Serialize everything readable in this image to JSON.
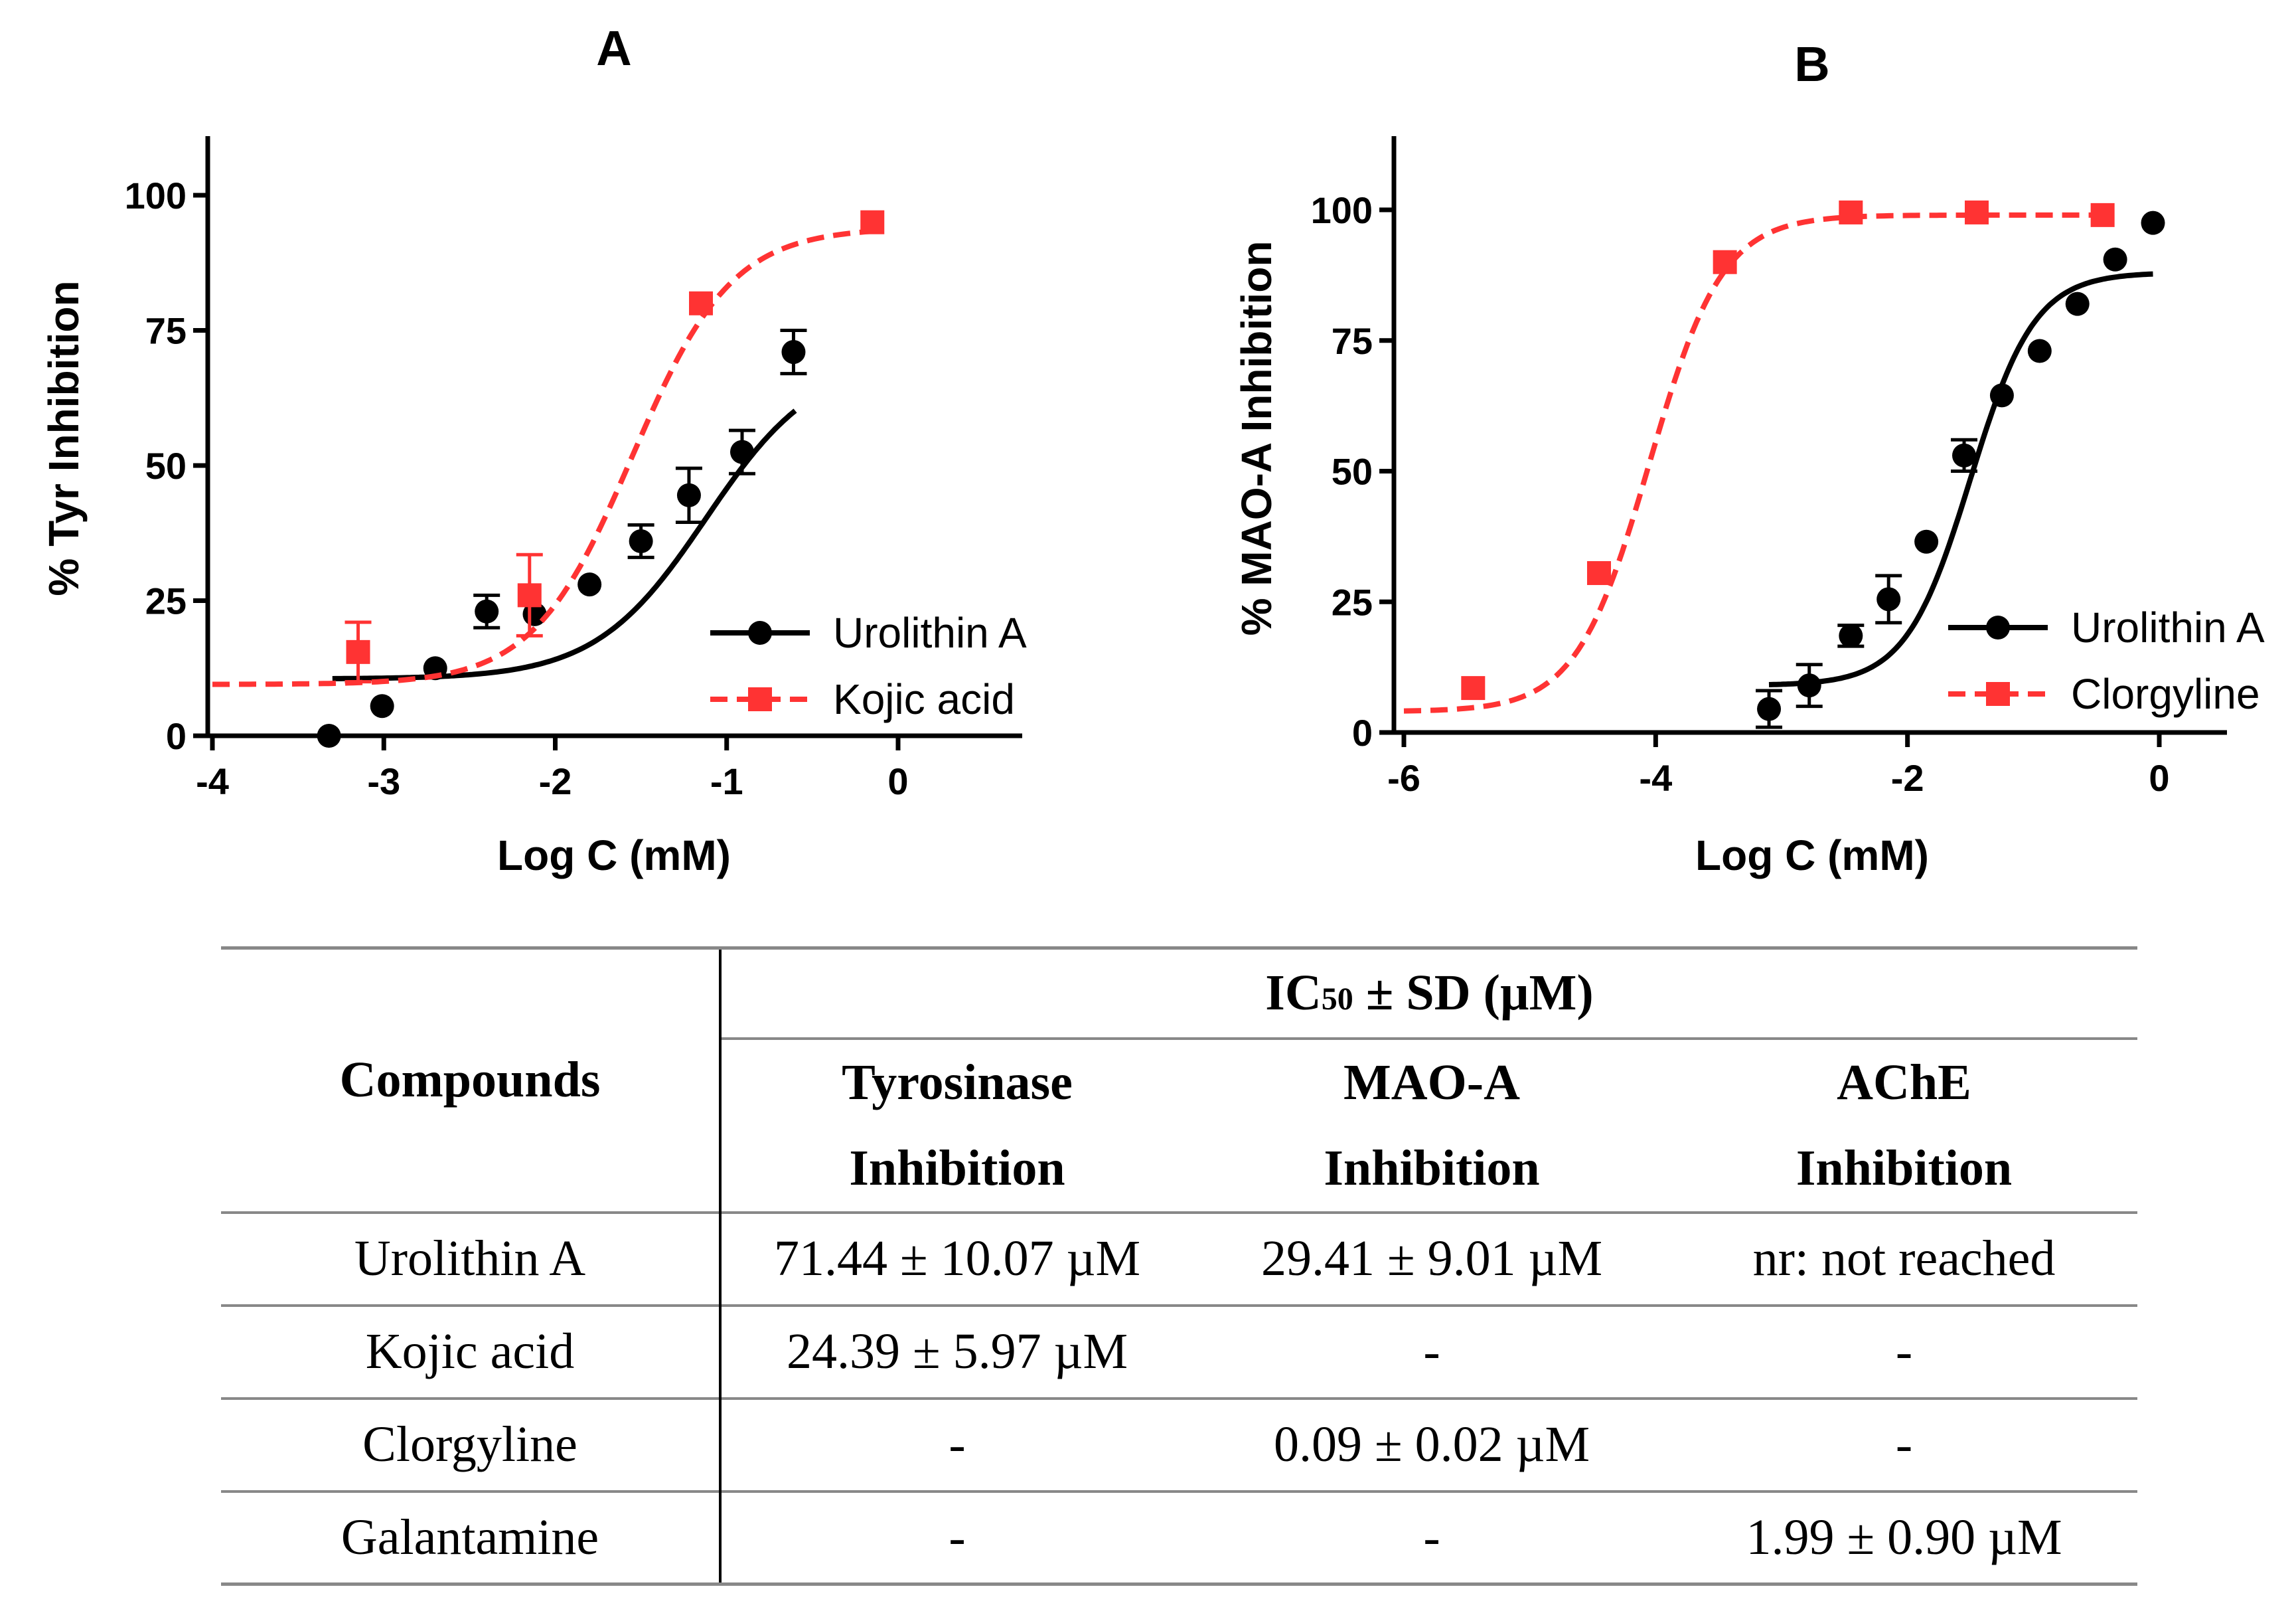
{
  "chart_data": [
    {
      "panel": "A",
      "type": "scatter",
      "xlabel": "Log C (mM)",
      "ylabel": "% Tyr Inhibition",
      "xlim": [
        -4,
        0.7
      ],
      "ylim": [
        0,
        110
      ],
      "xticks": [
        -4,
        -3,
        -2,
        -1,
        0
      ],
      "yticks": [
        0,
        25,
        50,
        75,
        100
      ],
      "legend_position": "bottom-right",
      "series": [
        {
          "name": "Urolithin A",
          "color": "#000000",
          "marker": "circle",
          "line_style": "solid",
          "points": [
            {
              "x": -3.32,
              "y": 0,
              "err": 0
            },
            {
              "x": -3.01,
              "y": 5.5,
              "err": 0
            },
            {
              "x": -2.7,
              "y": 12.5,
              "err": 0
            },
            {
              "x": -2.4,
              "y": 23,
              "err": 3
            },
            {
              "x": -2.12,
              "y": 22.5,
              "err": 0
            },
            {
              "x": -1.8,
              "y": 28,
              "err": 0
            },
            {
              "x": -1.5,
              "y": 36,
              "err": 3
            },
            {
              "x": -1.22,
              "y": 44.5,
              "err": 5
            },
            {
              "x": -0.91,
              "y": 52.5,
              "err": 4
            },
            {
              "x": -0.61,
              "y": 71,
              "err": 4
            }
          ],
          "fit": {
            "bottom": 10.5,
            "top": 70,
            "logIC50": -1.12,
            "hill": 1.35,
            "x_range": [
              -3.3,
              -0.6
            ]
          }
        },
        {
          "name": "Kojic acid",
          "color": "#ff3333",
          "marker": "square",
          "line_style": "dashed",
          "points": [
            {
              "x": -3.15,
              "y": 15.5,
              "err": 5.5
            },
            {
              "x": -2.15,
              "y": 26,
              "err": 7.5
            },
            {
              "x": -1.15,
              "y": 80,
              "err": 0
            },
            {
              "x": -0.15,
              "y": 95,
              "err": 0
            }
          ],
          "fit": {
            "bottom": 9.5,
            "top": 94,
            "logIC50": -1.55,
            "hill": 1.5,
            "x_range": [
              -4,
              -0.15
            ]
          }
        }
      ]
    },
    {
      "panel": "B",
      "type": "scatter",
      "xlabel": "Log C (mM)",
      "ylabel": "% MAO-A Inhibition",
      "xlim": [
        -6,
        0.55
      ],
      "ylim": [
        0,
        110
      ],
      "xticks": [
        -6,
        -4,
        -2,
        0
      ],
      "yticks": [
        0,
        25,
        50,
        75,
        100
      ],
      "legend_position": "bottom-right",
      "series": [
        {
          "name": "Urolithin A",
          "color": "#000000",
          "marker": "circle",
          "line_style": "solid",
          "points": [
            {
              "x": -3.1,
              "y": 4.5,
              "err": 3.5
            },
            {
              "x": -2.78,
              "y": 9,
              "err": 4
            },
            {
              "x": -2.45,
              "y": 18.5,
              "err": 2
            },
            {
              "x": -2.15,
              "y": 25.5,
              "err": 4.5
            },
            {
              "x": -1.85,
              "y": 36.5,
              "err": 0
            },
            {
              "x": -1.55,
              "y": 53,
              "err": 3
            },
            {
              "x": -1.25,
              "y": 64.5,
              "err": 0
            },
            {
              "x": -0.95,
              "y": 73,
              "err": 0
            },
            {
              "x": -0.65,
              "y": 82,
              "err": 0
            },
            {
              "x": -0.35,
              "y": 90.5,
              "err": 0
            },
            {
              "x": -0.05,
              "y": 97.5,
              "err": 0
            }
          ],
          "fit": {
            "bottom": 9,
            "top": 88,
            "logIC50": -1.5,
            "hill": 1.7,
            "x_range": [
              -3.1,
              -0.05
            ]
          }
        },
        {
          "name": "Clorgyline",
          "color": "#ff3333",
          "marker": "square",
          "line_style": "dashed",
          "points": [
            {
              "x": -5.45,
              "y": 8.5,
              "err": 0
            },
            {
              "x": -4.45,
              "y": 30.5,
              "err": 0
            },
            {
              "x": -3.45,
              "y": 90,
              "err": 0
            },
            {
              "x": -2.45,
              "y": 99.5,
              "err": 0
            },
            {
              "x": -1.45,
              "y": 99.5,
              "err": 0
            },
            {
              "x": -0.45,
              "y": 99,
              "err": 0
            }
          ],
          "fit": {
            "bottom": 4,
            "top": 99,
            "logIC50": -4.05,
            "hill": 1.5,
            "x_range": [
              -6,
              -0.45
            ]
          }
        }
      ]
    }
  ],
  "table": {
    "header_group": "± SD (µM)",
    "header_ic": "IC",
    "header_sub": "50",
    "col_compounds": "Compounds",
    "col1_line1": "Tyrosinase",
    "col1_line2": "Inhibition",
    "col2_line1": "MAO-A",
    "col2_line2": "Inhibition",
    "col3_line1": "AChE",
    "col3_line2": "Inhibition",
    "rows": [
      {
        "compound": "Urolithin A",
        "tyr": "71.44 ± 10.07 µM",
        "mao": "29.41 ± 9.01 µM",
        "ache": "nr: not reached"
      },
      {
        "compound": "Kojic acid",
        "tyr": "24.39 ± 5.97 µM",
        "mao": "-",
        "ache": "-"
      },
      {
        "compound": "Clorgyline",
        "tyr": "-",
        "mao": "0.09 ± 0.02 µM",
        "ache": "-"
      },
      {
        "compound": "Galantamine",
        "tyr": "-",
        "mao": "-",
        "ache": "1.99 ± 0.90 µM"
      }
    ]
  }
}
